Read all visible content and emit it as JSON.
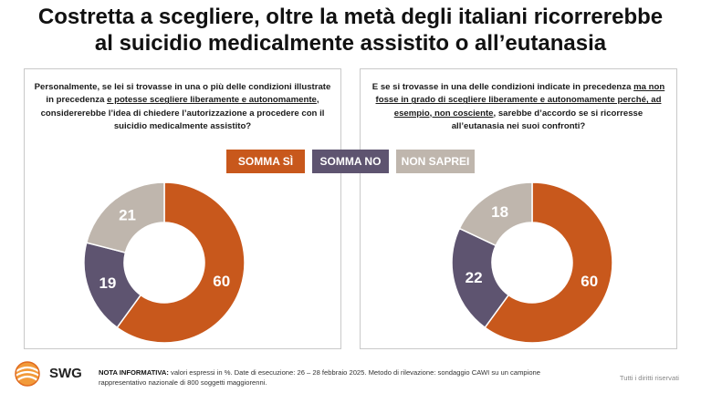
{
  "title": {
    "line1": "Costretta a scegliere, oltre la metà degli italiani ricorrerebbe",
    "line2": "al suicidio medicalmente assistito o all’eutanasia"
  },
  "legend": {
    "yes": "SOMMA SÌ",
    "no": "SOMMA NO",
    "dontknow": "NON SAPREI"
  },
  "colors": {
    "yes": "#c8581c",
    "no": "#5e5470",
    "dontknow": "#bfb6ad"
  },
  "questions": {
    "left": {
      "part1": "Personalmente, se lei si trovasse in una o più delle condizioni illustrate in precedenza ",
      "underlined": "e potesse scegliere liberamente e autonomamente",
      "part2": ", considererebbe l’idea di chiedere l’autorizzazione a procedere con il suicidio medicalmente assistito?"
    },
    "right": {
      "part1": "E se si trovasse in una delle condizioni indicate in precedenza ",
      "underlined": "ma non fosse in grado di scegliere liberamente e autonomamente perché, ad esempio, non cosciente",
      "part2": ", sarebbe d’accordo se si ricorresse all’eutanasia nei suoi confronti?"
    }
  },
  "chart_data": [
    {
      "type": "pie",
      "categories": [
        "SOMMA SÌ",
        "SOMMA NO",
        "NON SAPREI"
      ],
      "values": [
        60,
        19,
        21
      ]
    },
    {
      "type": "pie",
      "categories": [
        "SOMMA SÌ",
        "SOMMA NO",
        "NON SAPREI"
      ],
      "values": [
        60,
        22,
        18
      ]
    }
  ],
  "footer": {
    "brand": "SWG",
    "note_label": "NOTA INFORMATIVA:",
    "note_text": " valori espressi in %. Date di esecuzione: 26 – 28 febbraio 2025. Metodo di rilevazione: sondaggio CAWI su un campione rappresentativo nazionale di 800 soggetti maggiorenni.",
    "rights": "Tutti i diritti riservati"
  }
}
